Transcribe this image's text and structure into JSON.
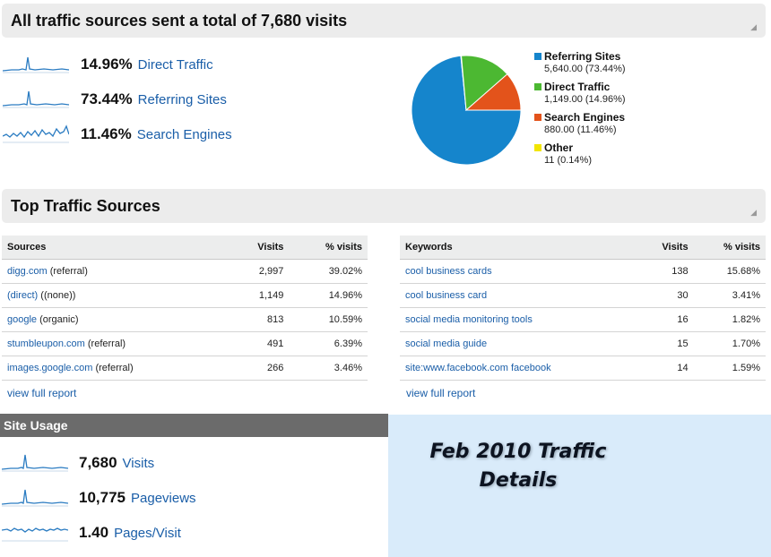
{
  "traffic_header": {
    "title": "All traffic sources sent a total of 7,680 visits"
  },
  "overview_metrics": [
    {
      "value": "14.96%",
      "label": "Direct Traffic"
    },
    {
      "value": "73.44%",
      "label": "Referring Sites"
    },
    {
      "value": "11.46%",
      "label": "Search Engines"
    }
  ],
  "pie_legend": [
    {
      "name": "Referring Sites",
      "value": "5,640.00 (73.44%)",
      "color": "#1585cc",
      "pct": 73.44
    },
    {
      "name": "Direct Traffic",
      "value": "1,149.00 (14.96%)",
      "color": "#4cb832",
      "pct": 14.96
    },
    {
      "name": "Search Engines",
      "value": "880.00 (11.46%)",
      "color": "#e3531b",
      "pct": 11.46
    },
    {
      "name": "Other",
      "value": "11 (0.14%)",
      "color": "#f2e500",
      "pct": 0.14
    }
  ],
  "top_sources_header": {
    "title": "Top Traffic Sources"
  },
  "sources_table": {
    "headers": [
      "Sources",
      "Visits",
      "% visits"
    ],
    "rows": [
      {
        "link": "digg.com",
        "suffix": " (referral)",
        "visits": "2,997",
        "pct": "39.02%"
      },
      {
        "link": "(direct)",
        "suffix": " ((none))",
        "visits": "1,149",
        "pct": "14.96%"
      },
      {
        "link": "google",
        "suffix": " (organic)",
        "visits": "813",
        "pct": "10.59%"
      },
      {
        "link": "stumbleupon.com",
        "suffix": " (referral)",
        "visits": "491",
        "pct": "6.39%"
      },
      {
        "link": "images.google.com",
        "suffix": " (referral)",
        "visits": "266",
        "pct": "3.46%"
      }
    ],
    "full_report": "view full report"
  },
  "keywords_table": {
    "headers": [
      "Keywords",
      "Visits",
      "% visits"
    ],
    "rows": [
      {
        "link": "cool business cards",
        "visits": "138",
        "pct": "15.68%"
      },
      {
        "link": "cool business card",
        "visits": "30",
        "pct": "3.41%"
      },
      {
        "link": "social media monitoring tools",
        "visits": "16",
        "pct": "1.82%"
      },
      {
        "link": "social media guide",
        "visits": "15",
        "pct": "1.70%"
      },
      {
        "link": "site:www.facebook.com facebook",
        "visits": "14",
        "pct": "1.59%"
      }
    ],
    "full_report": "view full report"
  },
  "site_usage": {
    "title": "Site Usage",
    "metrics": [
      {
        "value": "7,680",
        "label": "Visits"
      },
      {
        "value": "10,775",
        "label": "Pageviews"
      },
      {
        "value": "1.40",
        "label": "Pages/Visit"
      }
    ]
  },
  "promo": {
    "line1": "Feb 2010 Traffic",
    "line2": "Details"
  },
  "colors": {
    "link": "#1a5ea8",
    "sparkline": "#2b7cc2",
    "header_bg": "#ececec",
    "site_usage_bg": "#6b6b6b",
    "promo_bg": "#d9ebfa"
  }
}
